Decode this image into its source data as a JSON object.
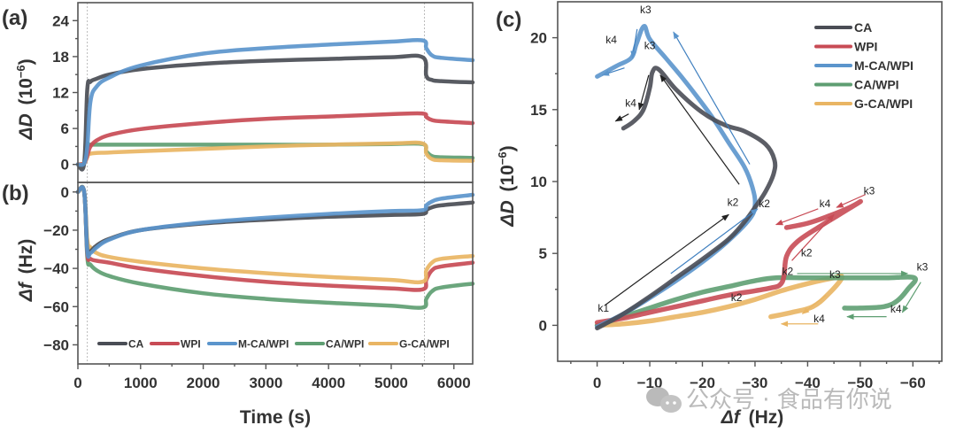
{
  "colors": {
    "CA": "#4a4d55",
    "WPI": "#c84b55",
    "M-CA/WPI": "#5b95cc",
    "CA/WPI": "#5e9e72",
    "G-CA/WPI": "#e9b563"
  },
  "watermark": {
    "icon": "wechat-icon",
    "text": "公众号 · 食品有你说"
  },
  "chart_data": [
    {
      "panel": "(a)",
      "type": "line",
      "title": "",
      "xlabel": "",
      "ylabel_prefix": "ΔD",
      "ylabel_unit": "(10",
      "ylabel_exp": "−6",
      "ylabel_close": ")",
      "xlim": [
        0,
        6300
      ],
      "ylim": [
        -3,
        27
      ],
      "yticks": [
        0,
        6,
        12,
        18,
        24
      ],
      "ytick_labels": [
        "0",
        "6",
        "12",
        "18",
        "24"
      ],
      "vlines": [
        150,
        5530
      ],
      "series": [
        {
          "name": "CA",
          "x": [
            0,
            100,
            150,
            200,
            300,
            500,
            1000,
            2000,
            3000,
            4000,
            5000,
            5500,
            5560,
            5650,
            5800,
            6300
          ],
          "y": [
            0,
            0.2,
            12.5,
            13.8,
            14.3,
            15.0,
            15.9,
            16.8,
            17.3,
            17.6,
            17.9,
            17.9,
            14.8,
            14.1,
            13.9,
            13.7
          ]
        },
        {
          "name": "WPI",
          "x": [
            0,
            100,
            150,
            200,
            300,
            500,
            1000,
            2000,
            3000,
            4000,
            5000,
            5500,
            5560,
            5650,
            5800,
            6300
          ],
          "y": [
            0,
            0.2,
            1.5,
            3.0,
            4.0,
            4.9,
            5.9,
            6.9,
            7.6,
            8.0,
            8.4,
            8.5,
            7.9,
            7.4,
            7.2,
            6.9
          ]
        },
        {
          "name": "M-CA/WPI",
          "x": [
            0,
            100,
            150,
            200,
            300,
            500,
            1000,
            2000,
            3000,
            4000,
            5000,
            5500,
            5560,
            5650,
            5800,
            6300
          ],
          "y": [
            0,
            0.2,
            3.0,
            10.5,
            13.0,
            14.5,
            16.5,
            18.5,
            19.4,
            20.0,
            20.5,
            20.7,
            19.4,
            18.2,
            17.8,
            17.4
          ]
        },
        {
          "name": "CA/WPI",
          "x": [
            0,
            100,
            150,
            200,
            500,
            1000,
            2000,
            3000,
            4000,
            5000,
            5500,
            5560,
            5650,
            5800,
            6300
          ],
          "y": [
            0,
            0.2,
            3.2,
            3.3,
            3.3,
            3.3,
            3.3,
            3.3,
            3.3,
            3.4,
            3.4,
            2.2,
            1.4,
            1.2,
            1.1
          ]
        },
        {
          "name": "G-CA/WPI",
          "x": [
            0,
            100,
            150,
            200,
            500,
            1000,
            2000,
            3000,
            4000,
            5000,
            5500,
            5560,
            5650,
            5800,
            6300
          ],
          "y": [
            0,
            0.2,
            1.2,
            1.8,
            2.0,
            2.2,
            2.6,
            3.0,
            3.3,
            3.5,
            3.5,
            1.8,
            0.9,
            0.7,
            0.6
          ]
        }
      ]
    },
    {
      "panel": "(b)",
      "type": "line",
      "title": "",
      "xlabel": "Time (s)",
      "ylabel_prefix": "Δf",
      "ylabel_unit": "(Hz)",
      "xlim": [
        0,
        6300
      ],
      "ylim": [
        -90,
        5
      ],
      "xticks": [
        0,
        1000,
        2000,
        3000,
        4000,
        5000,
        6000
      ],
      "xtick_labels": [
        "0",
        "1000",
        "2000",
        "3000",
        "4000",
        "5000",
        "6000"
      ],
      "yticks": [
        0,
        -20,
        -40,
        -60,
        -80
      ],
      "ytick_labels": [
        "0",
        "−20",
        "−40",
        "−60",
        "−80"
      ],
      "vlines": [
        150,
        5530
      ],
      "legend_position": "bottom",
      "series": [
        {
          "name": "CA",
          "x": [
            0,
            100,
            150,
            200,
            300,
            500,
            1000,
            2000,
            3000,
            4000,
            5000,
            5500,
            5560,
            5650,
            5800,
            6300
          ],
          "y": [
            0,
            0,
            -30,
            -31,
            -28,
            -24.5,
            -20,
            -16.5,
            -14.5,
            -13,
            -12,
            -11.5,
            -9.5,
            -8,
            -7,
            -5.5
          ]
        },
        {
          "name": "WPI",
          "x": [
            0,
            100,
            150,
            200,
            300,
            500,
            1000,
            2000,
            3000,
            4000,
            5000,
            5500,
            5560,
            5650,
            5800,
            6300
          ],
          "y": [
            0,
            0,
            -32,
            -35,
            -36,
            -37,
            -40,
            -44,
            -47,
            -49,
            -50.5,
            -51,
            -46,
            -41,
            -39,
            -37
          ]
        },
        {
          "name": "M-CA/WPI",
          "x": [
            0,
            100,
            150,
            200,
            300,
            500,
            1000,
            2000,
            3000,
            4000,
            5000,
            5500,
            5560,
            5650,
            5800,
            6300
          ],
          "y": [
            0,
            0,
            -31,
            -32,
            -29,
            -25,
            -20,
            -16,
            -13.5,
            -11.5,
            -10,
            -9.5,
            -7,
            -5,
            -3.5,
            -1.5
          ]
        },
        {
          "name": "CA/WPI",
          "x": [
            0,
            100,
            150,
            200,
            300,
            500,
            1000,
            2000,
            3000,
            4000,
            5000,
            5500,
            5560,
            5650,
            5800,
            6300
          ],
          "y": [
            0,
            0,
            -34,
            -38,
            -41,
            -44,
            -48,
            -53,
            -56,
            -58,
            -59.5,
            -60.5,
            -56,
            -52,
            -50,
            -48
          ]
        },
        {
          "name": "G-CA/WPI",
          "x": [
            0,
            100,
            150,
            200,
            300,
            500,
            1000,
            2000,
            3000,
            4000,
            5000,
            5500,
            5560,
            5650,
            5800,
            6300
          ],
          "y": [
            0,
            0,
            -25,
            -29,
            -32,
            -34,
            -36.5,
            -40,
            -42.5,
            -44.5,
            -46,
            -47,
            -41,
            -37,
            -35,
            -33.5
          ]
        }
      ],
      "legend": [
        "CA",
        "WPI",
        "M-CA/WPI",
        "CA/WPI",
        "G-CA/WPI"
      ]
    },
    {
      "panel": "(c)",
      "type": "line",
      "title": "",
      "xlabel_prefix": "Δf",
      "xlabel_unit": "(Hz)",
      "ylabel_prefix": "ΔD",
      "ylabel_unit": "(10",
      "ylabel_exp": "−6",
      "ylabel_close": ")",
      "xlim": [
        7.5,
        -65.5
      ],
      "ylim": [
        -2.5,
        22.5
      ],
      "xticks": [
        0,
        -10,
        -20,
        -30,
        -40,
        -50,
        -60
      ],
      "xtick_labels": [
        "0",
        "−10",
        "−20",
        "−30",
        "−40",
        "−50",
        "−60"
      ],
      "yticks": [
        0,
        5,
        10,
        15,
        20
      ],
      "ytick_labels": [
        "0",
        "5",
        "10",
        "15",
        "20"
      ],
      "legend_position": "top-right",
      "legend": [
        "CA",
        "WPI",
        "M-CA/WPI",
        "CA/WPI",
        "G-CA/WPI"
      ],
      "series": [
        {
          "name": "CA",
          "x": [
            0,
            -5,
            -10,
            -15,
            -20,
            -25,
            -28,
            -30,
            -32,
            -33.5,
            -33.7,
            -32,
            -28,
            -24.5,
            -20,
            -15,
            -11.7,
            -10.5,
            -10,
            -8.8,
            -7,
            -5
          ],
          "y": [
            -0.2,
            0.8,
            2.0,
            3.3,
            4.6,
            6.0,
            7.2,
            8.2,
            9.3,
            10.5,
            11.5,
            12.6,
            13.5,
            13.9,
            14.8,
            16.4,
            17.8,
            17.6,
            16.5,
            15.0,
            14.2,
            13.7
          ]
        },
        {
          "name": "WPI",
          "x": [
            0,
            -5,
            -10,
            -15,
            -20,
            -25,
            -30,
            -33,
            -34.7,
            -35.5,
            -36,
            -38,
            -42,
            -46,
            -50,
            -48,
            -44,
            -40,
            -36
          ],
          "y": [
            0.2,
            0.5,
            0.9,
            1.3,
            1.7,
            2.1,
            2.4,
            2.6,
            2.8,
            3.4,
            4.8,
            5.8,
            6.8,
            7.7,
            8.6,
            8.2,
            7.6,
            7.1,
            6.8
          ]
        },
        {
          "name": "M-CA/WPI",
          "x": [
            0,
            -5,
            -10,
            -15,
            -20,
            -25,
            -29,
            -30,
            -29.5,
            -28,
            -25,
            -22,
            -19,
            -16,
            -13,
            -10,
            -8.9,
            -7.5,
            -6.5,
            -4,
            -2,
            0
          ],
          "y": [
            -0.1,
            0.8,
            1.9,
            3.1,
            4.4,
            5.9,
            7.4,
            8.4,
            9.6,
            11.0,
            12.7,
            14.4,
            15.9,
            17.3,
            18.6,
            19.9,
            20.8,
            19.6,
            18.6,
            18.1,
            17.7,
            17.3
          ]
        },
        {
          "name": "CA/WPI",
          "x": [
            0,
            -5,
            -10,
            -15,
            -20,
            -25,
            -30,
            -34,
            -40,
            -45,
            -50,
            -55,
            -60.3,
            -59,
            -57,
            -54.5,
            -50,
            -47
          ],
          "y": [
            0,
            0.6,
            1.2,
            1.8,
            2.3,
            2.7,
            3.1,
            3.3,
            3.3,
            3.3,
            3.3,
            3.3,
            3.3,
            2.5,
            1.7,
            1.3,
            1.2,
            1.2
          ]
        },
        {
          "name": "G-CA/WPI",
          "x": [
            0,
            -5,
            -10,
            -15,
            -20,
            -25,
            -30,
            -35,
            -40,
            -45,
            -46.5,
            -44,
            -41,
            -37,
            -33
          ],
          "y": [
            0,
            0.1,
            0.3,
            0.6,
            0.9,
            1.3,
            1.8,
            2.4,
            2.9,
            3.3,
            3.3,
            2.2,
            1.3,
            0.9,
            0.6
          ]
        }
      ],
      "annotations": [
        {
          "text": "k1",
          "x": -1.2,
          "y": 0.95
        },
        {
          "text": "k2",
          "x": -25.8,
          "y": 8.3
        },
        {
          "text": "k2",
          "x": -31.8,
          "y": 8.2
        },
        {
          "text": "k3",
          "x": -9.2,
          "y": 21.7
        },
        {
          "text": "k4",
          "x": -2.7,
          "y": 19.6
        },
        {
          "text": "k3",
          "x": -10.0,
          "y": 19.2
        },
        {
          "text": "k4",
          "x": -6.4,
          "y": 15.2
        },
        {
          "text": "k4",
          "x": -43.3,
          "y": 8.2
        },
        {
          "text": "k3",
          "x": -51.7,
          "y": 9.1
        },
        {
          "text": "k2",
          "x": -39.8,
          "y": 4.8
        },
        {
          "text": "k2",
          "x": -36.2,
          "y": 3.5
        },
        {
          "text": "k3",
          "x": -45.2,
          "y": 3.3
        },
        {
          "text": "k3",
          "x": -61.8,
          "y": 3.8
        },
        {
          "text": "k4",
          "x": -56.8,
          "y": 0.9
        },
        {
          "text": "k4",
          "x": -42.2,
          "y": 0.2
        },
        {
          "text": "k2",
          "x": -26.5,
          "y": 1.7
        }
      ],
      "arrows": [
        {
          "series": "CA",
          "from": [
            -1.5,
            1.4
          ],
          "to": [
            -25,
            7.7
          ]
        },
        {
          "series": "CA",
          "from": [
            -27,
            9.8
          ],
          "to": [
            -12,
            17.4
          ]
        },
        {
          "series": "CA",
          "from": [
            -9.8,
            17.4
          ],
          "to": [
            -8,
            15.0
          ]
        },
        {
          "series": "CA",
          "from": [
            -6,
            14.7
          ],
          "to": [
            -3.5,
            14.2
          ]
        },
        {
          "series": "M-CA/WPI",
          "from": [
            -14,
            3.6
          ],
          "to": [
            -30.5,
            8.1
          ]
        },
        {
          "series": "M-CA/WPI",
          "from": [
            -29,
            11.2
          ],
          "to": [
            -14.5,
            20.4
          ]
        },
        {
          "series": "M-CA/WPI",
          "from": [
            -7.6,
            20.6
          ],
          "to": [
            -6.7,
            18.6
          ]
        },
        {
          "series": "M-CA/WPI",
          "from": [
            -5.2,
            17.9
          ],
          "to": [
            -1,
            17.4
          ]
        },
        {
          "series": "WPI",
          "from": [
            -37,
            4.5
          ],
          "to": [
            -45,
            7.7
          ]
        },
        {
          "series": "WPI",
          "from": [
            -51,
            9.1
          ],
          "to": [
            -45.5,
            8.2
          ]
        },
        {
          "series": "WPI",
          "from": [
            -42,
            8.1
          ],
          "to": [
            -34,
            7.0
          ]
        },
        {
          "series": "CA/WPI",
          "from": [
            -38,
            3.6
          ],
          "to": [
            -59,
            3.6
          ]
        },
        {
          "series": "CA/WPI",
          "from": [
            -61.5,
            3.0
          ],
          "to": [
            -58,
            0.9
          ]
        },
        {
          "series": "CA/WPI",
          "from": [
            -55,
            0.6
          ],
          "to": [
            -47.5,
            0.6
          ]
        },
        {
          "series": "G-CA/WPI",
          "from": [
            -43.5,
            2.1
          ],
          "to": [
            -39,
            0.8
          ]
        },
        {
          "series": "G-CA/WPI",
          "from": [
            -42,
            0.1
          ],
          "to": [
            -35,
            0.1
          ]
        }
      ]
    }
  ]
}
